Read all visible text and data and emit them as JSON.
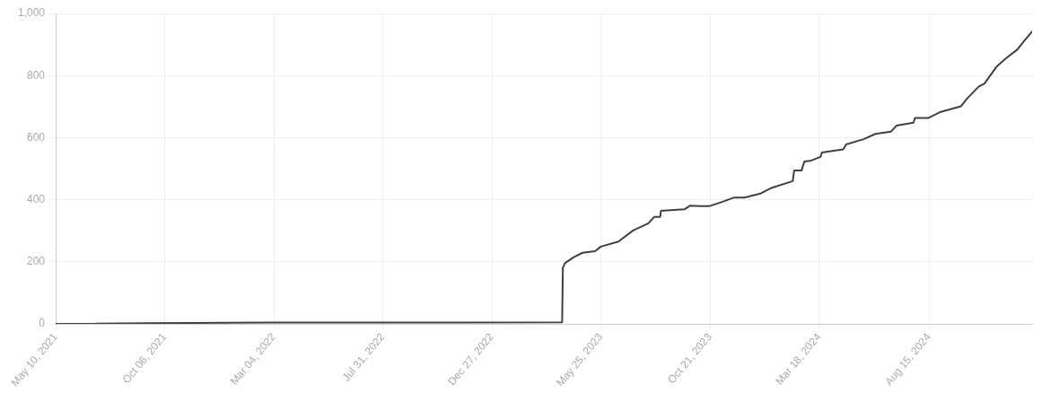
{
  "chart_data": {
    "type": "line",
    "color": "#404040",
    "x": [
      "2021-05-10",
      "2021-07-04",
      "2021-07-05",
      "2021-09-10",
      "2021-11-10",
      "2022-03-04",
      "2023-04-02",
      "2023-04-03",
      "2023-04-06",
      "2023-04-18",
      "2023-04-30",
      "2023-05-17",
      "2023-05-25",
      "2023-06-18",
      "2023-07-08",
      "2023-07-29",
      "2023-08-06",
      "2023-08-14",
      "2023-08-15",
      "2023-09-16",
      "2023-09-24",
      "2023-10-07",
      "2023-10-20",
      "2023-11-09",
      "2023-11-23",
      "2023-12-07",
      "2023-12-28",
      "2024-01-13",
      "2024-02-11",
      "2024-02-13",
      "2024-02-23",
      "2024-02-27",
      "2024-03-06",
      "2024-03-20",
      "2024-03-22",
      "2024-04-20",
      "2024-04-24",
      "2024-05-18",
      "2024-06-03",
      "2024-06-24",
      "2024-07-02",
      "2024-07-25",
      "2024-07-27",
      "2024-08-14",
      "2024-08-30",
      "2024-09-28",
      "2024-10-06",
      "2024-10-22",
      "2024-10-30",
      "2024-11-15",
      "2024-11-28",
      "2024-12-14",
      "2024-12-22",
      "2025-01-03"
    ],
    "values": [
      0,
      0,
      1,
      2,
      3,
      4,
      5,
      181,
      196,
      215,
      229,
      234,
      249,
      265,
      301,
      324,
      345,
      345,
      364,
      369,
      381,
      379,
      379,
      395,
      407,
      407,
      419,
      438,
      460,
      494,
      494,
      523,
      525,
      538,
      552,
      562,
      578,
      595,
      612,
      619,
      639,
      648,
      663,
      663,
      682,
      701,
      725,
      764,
      774,
      827,
      855,
      884,
      908,
      942
    ],
    "xlim": [
      "2021-05-10",
      "2025-01-03"
    ],
    "xticks": [
      {
        "value": "2021-05-10",
        "label": "May 10, 2021"
      },
      {
        "value": "2021-10-06",
        "label": "Oct 06, 2021"
      },
      {
        "value": "2022-03-04",
        "label": "Mar 04, 2022"
      },
      {
        "value": "2022-07-31",
        "label": "Jul 31, 2022"
      },
      {
        "value": "2022-12-27",
        "label": "Dec 27, 2022"
      },
      {
        "value": "2023-05-25",
        "label": "May 25, 2023"
      },
      {
        "value": "2023-10-21",
        "label": "Oct 21, 2023"
      },
      {
        "value": "2024-03-18",
        "label": "Mar 18, 2024"
      },
      {
        "value": "2024-08-15",
        "label": "Aug 15, 2024"
      }
    ],
    "ylim": [
      0,
      1000
    ],
    "yticks": [
      0,
      200,
      400,
      600,
      800,
      {
        "value": 1000,
        "label": "1,000"
      }
    ],
    "grid": true
  }
}
